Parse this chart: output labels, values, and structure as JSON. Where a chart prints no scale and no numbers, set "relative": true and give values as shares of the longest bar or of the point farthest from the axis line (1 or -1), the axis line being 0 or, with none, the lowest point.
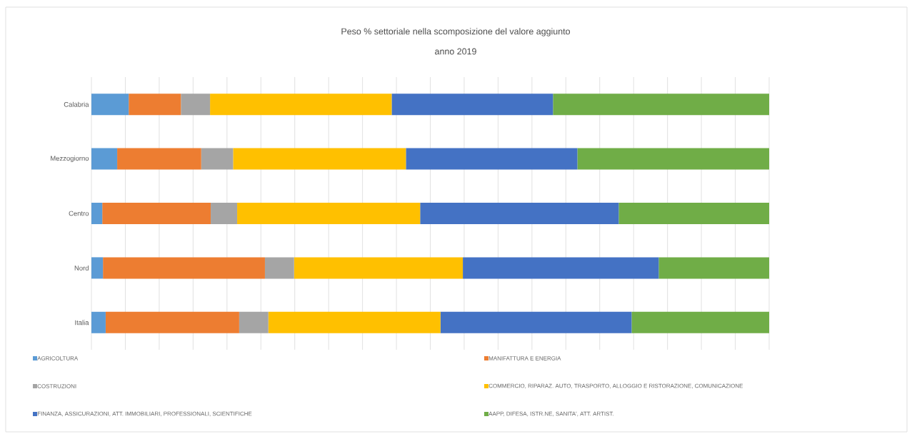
{
  "chart_data": {
    "type": "bar",
    "title": "Peso % settoriale nella scomposizione del valore aggiunto",
    "subtitle": "anno 2019",
    "orientation": "horizontal",
    "stacked": true,
    "relative": true,
    "grid": "x",
    "legend": "bottom",
    "categories": [
      "Calabria",
      "Mezzogiorno",
      "Centro",
      "Nord",
      "Italia"
    ],
    "series": [
      {
        "name": "AGRICOLTURA",
        "color": "#5b9bd5",
        "values": [
          0.055,
          0.038,
          0.016,
          0.017,
          0.021
        ]
      },
      {
        "name": "MANIFATTURA E ENERGIA",
        "color": "#ed7d31",
        "values": [
          0.077,
          0.124,
          0.16,
          0.239,
          0.197
        ]
      },
      {
        "name": "COSTRUZIONI",
        "color": "#a5a5a5",
        "values": [
          0.043,
          0.047,
          0.039,
          0.043,
          0.043
        ]
      },
      {
        "name": "COMMERCIO, RIPARAZ. AUTO, TRASPORTO, ALLOGGIO E RISTORAZIONE, COMUNICAZIONE",
        "color": "#ffc000",
        "values": [
          0.268,
          0.255,
          0.27,
          0.249,
          0.254
        ]
      },
      {
        "name": "FINANZA, ASSICURAZIONI, ATT. IMMOBILIARI, PROFESSIONALI, SCIENTIFICHE",
        "color": "#4472c4",
        "values": [
          0.238,
          0.253,
          0.293,
          0.289,
          0.282
        ]
      },
      {
        "name": "AAPP, DIFESA, ISTR.NE, SANITA', ATT. ARTIST.",
        "color": "#70ad47",
        "values": [
          0.319,
          0.283,
          0.222,
          0.163,
          0.203
        ]
      }
    ]
  }
}
